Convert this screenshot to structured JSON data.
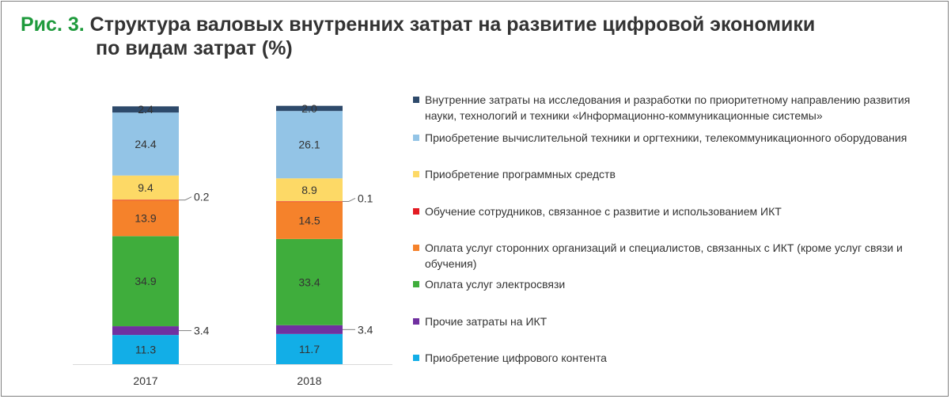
{
  "title": {
    "prefix": "Рис. 3.",
    "line1": "Структура валовых внутренних затрат на развитие цифровой экономики",
    "line2": "по видам затрат (%)"
  },
  "colors": {
    "title_accent": "#1e9a3c",
    "text": "#333333"
  },
  "chart_data": {
    "type": "bar",
    "stacked": true,
    "orientation": "vertical",
    "ylim": [
      0,
      100
    ],
    "categories": [
      "2017",
      "2018"
    ],
    "series": [
      {
        "name": "Приобретение цифрового контента",
        "color": "#12aee7",
        "values": [
          11.3,
          11.7
        ],
        "labels": [
          "11.3",
          "11.7"
        ],
        "label_style": "inside"
      },
      {
        "name": "Прочие затраты на ИКТ",
        "color": "#7030a0",
        "values": [
          3.4,
          3.4
        ],
        "labels": [
          "3.4",
          "3.4"
        ],
        "label_style": "callout"
      },
      {
        "name": "Оплата услуг электросвязи",
        "color": "#3fad3c",
        "values": [
          34.9,
          33.4
        ],
        "labels": [
          "34.9",
          "33.4"
        ],
        "label_style": "inside"
      },
      {
        "name": "Оплата услуг сторонних организаций и специалистов, связанных с ИКТ (кроме услуг связи и обучения)",
        "color": "#f5822b",
        "values": [
          13.9,
          14.5
        ],
        "labels": [
          "13.9",
          "14.5"
        ],
        "label_style": "inside"
      },
      {
        "name": "Обучение сотрудников, связанное с развитие и использованием ИКТ",
        "color": "#e31b23",
        "values": [
          0.2,
          0.1
        ],
        "labels": [
          "0.2",
          "0.1"
        ],
        "label_style": "callout"
      },
      {
        "name": "Приобретение программных средств",
        "color": "#fdd966",
        "values": [
          9.4,
          8.9
        ],
        "labels": [
          "9.4",
          "8.9"
        ],
        "label_style": "inside"
      },
      {
        "name": "Приобретение вычислительной техники и оргтехники, телекоммуникационного оборудования",
        "color": "#93c4e6",
        "values": [
          24.4,
          26.1
        ],
        "labels": [
          "24.4",
          "26.1"
        ],
        "label_style": "inside"
      },
      {
        "name": "Внутренние затраты на исследования и разработки по приоритетному направлению развития науки, технологий и техники «Информационно-коммуникационные системы»",
        "color": "#2e4a6b",
        "values": [
          2.4,
          2.0
        ],
        "labels": [
          "2.4",
          "2.0"
        ],
        "label_style": "inside"
      }
    ],
    "legend_order": [
      7,
      6,
      5,
      4,
      3,
      2,
      1,
      0
    ],
    "legend": "right"
  }
}
